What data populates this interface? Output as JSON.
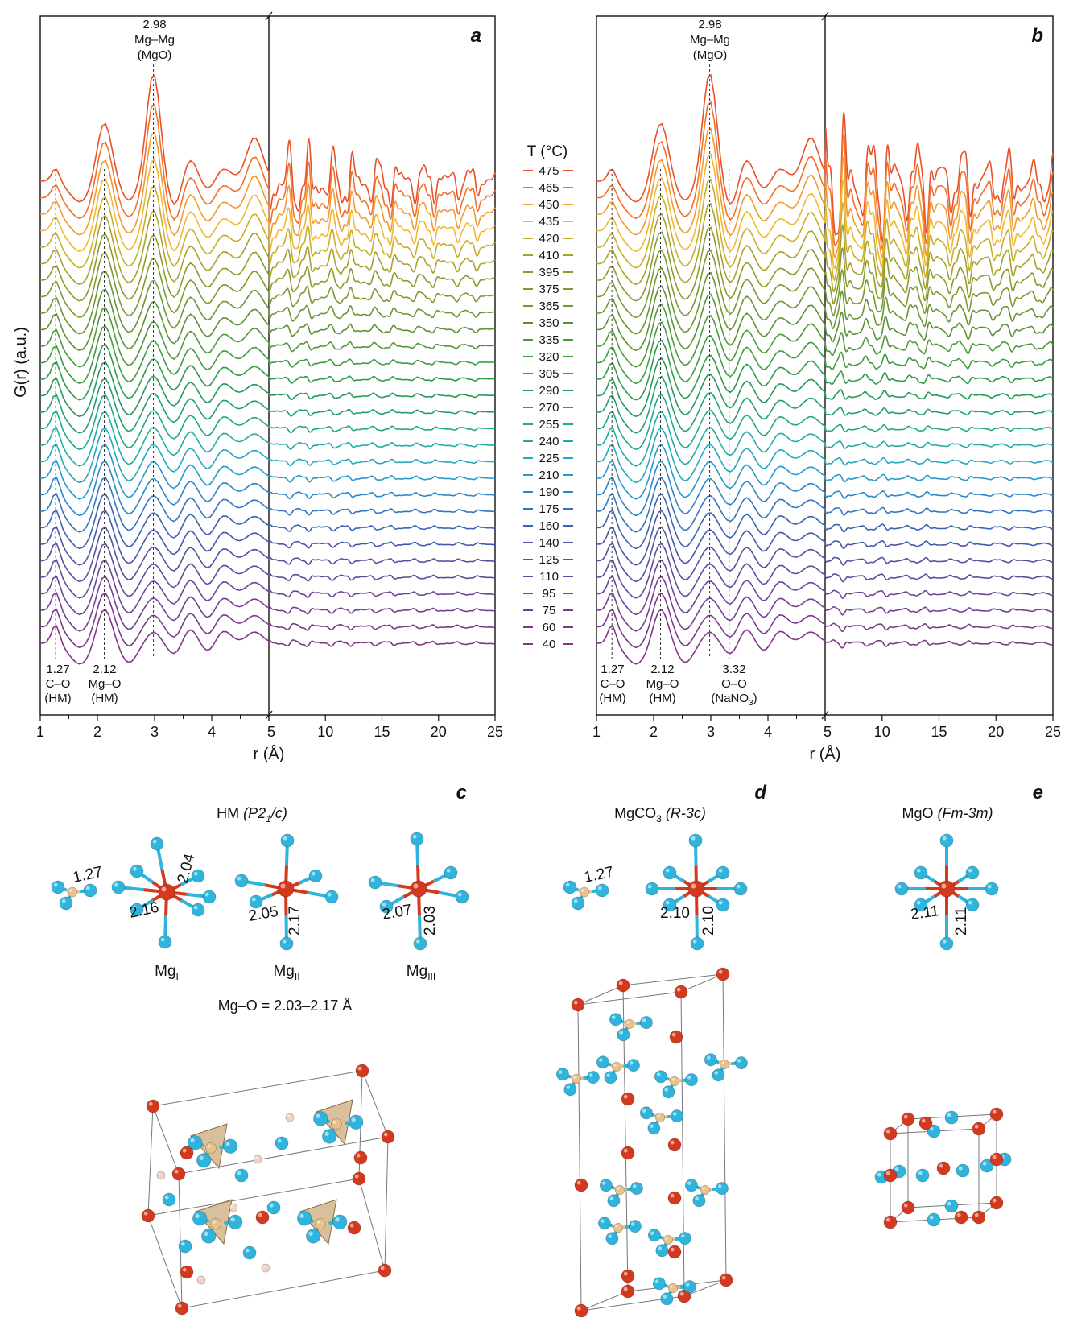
{
  "figure": {
    "y_axis_label": "G(r) (a.u.)",
    "x_axis_label": "r (Å)",
    "legend_title": "T (°C)",
    "temperatures": [
      "475",
      "465",
      "450",
      "435",
      "420",
      "410",
      "395",
      "375",
      "365",
      "350",
      "335",
      "320",
      "305",
      "290",
      "270",
      "255",
      "240",
      "225",
      "210",
      "190",
      "175",
      "160",
      "140",
      "125",
      "110",
      "95",
      "75",
      "60",
      "40"
    ],
    "legend_colors": [
      "#e8502a",
      "#f0702c",
      "#f29a30",
      "#f0b730",
      "#c9ae2a",
      "#a8a22a",
      "#8c9b2e",
      "#7a9a30",
      "#6a9634",
      "#5a9236",
      "#4d9a3a",
      "#3e9c3e",
      "#2f9a48",
      "#24995a",
      "#20a070",
      "#1fa888",
      "#20aca4",
      "#22a8c0",
      "#2598cc",
      "#2a86c8",
      "#3274be",
      "#3a62b4",
      "#4656aa",
      "#5450a2",
      "#604a9c",
      "#6c4498",
      "#753e92",
      "#7c388c",
      "#823488"
    ]
  },
  "panel_a": {
    "label": "a",
    "top_annotation": [
      "2.98",
      "Mg–Mg",
      "(MgO)"
    ],
    "bottom_annotations": [
      {
        "lines": [
          "1.27",
          "C–O",
          "(HM)"
        ]
      },
      {
        "lines": [
          "2.12",
          "Mg–O",
          "(HM)"
        ]
      }
    ],
    "x_ticks_left": [
      "1",
      "2",
      "3",
      "4",
      "5"
    ],
    "x_ticks_right": [
      "5",
      "10",
      "15",
      "20",
      "25"
    ]
  },
  "panel_b": {
    "label": "b",
    "top_annotation": [
      "2.98",
      "Mg–Mg",
      "(MgO)"
    ],
    "bottom_annotations": [
      {
        "lines": [
          "1.27",
          "C–O",
          "(HM)"
        ]
      },
      {
        "lines": [
          "2.12",
          "Mg–O",
          "(HM)"
        ]
      },
      {
        "lines": [
          "3.32",
          "O–O",
          "(NaNO",
          "3",
          ")"
        ]
      }
    ],
    "x_ticks_left": [
      "1",
      "2",
      "3",
      "4",
      "5"
    ],
    "x_ticks_right": [
      "5",
      "10",
      "15",
      "20",
      "25"
    ]
  },
  "panel_c": {
    "label": "c",
    "title_main": "HM",
    "title_group": "(P2",
    "title_sub": "1",
    "title_end": "/c)",
    "bond_co": "1.27",
    "sites": [
      {
        "name": "Mg",
        "sub": "I",
        "bonds": [
          "2.04",
          "2.16"
        ]
      },
      {
        "name": "Mg",
        "sub": "II",
        "bonds": [
          "2.05",
          "2.17"
        ]
      },
      {
        "name": "Mg",
        "sub": "III",
        "bonds": [
          "2.07",
          "2.03"
        ]
      }
    ],
    "range_text": "Mg–O = 2.03–2.17 Å"
  },
  "panel_d": {
    "label": "d",
    "title_main": "MgCO",
    "title_sub": "3",
    "title_group": "(R-3c)",
    "bond_co": "1.27",
    "bonds": [
      "2.10",
      "2.10"
    ]
  },
  "panel_e": {
    "label": "e",
    "title_main": "MgO",
    "title_group": "(Fm-3m)",
    "bonds": [
      "2.11",
      "2.11"
    ]
  },
  "colors": {
    "oxygen": "#2fb5dd",
    "magnesium": "#d4391e",
    "carbon": "#e7c28c",
    "hydrogen": "#f2d2c8",
    "triangle": "#c9a574"
  },
  "chart_data": [
    {
      "type": "line",
      "title": "a",
      "xlabel": "r (Å)",
      "ylabel": "G(r) (a.u.)",
      "xlim": [
        1,
        25
      ],
      "x_break": 5,
      "series_names": [
        "475",
        "465",
        "450",
        "435",
        "420",
        "410",
        "395",
        "375",
        "365",
        "350",
        "335",
        "320",
        "305",
        "290",
        "270",
        "255",
        "240",
        "225",
        "210",
        "190",
        "175",
        "160",
        "140",
        "125",
        "110",
        "95",
        "75",
        "60",
        "40"
      ],
      "peaks": [
        {
          "r": 1.27,
          "label": "C–O (HM)"
        },
        {
          "r": 2.12,
          "label": "Mg–O (HM)"
        },
        {
          "r": 2.98,
          "label": "Mg–Mg (MgO)"
        }
      ]
    },
    {
      "type": "line",
      "title": "b",
      "xlabel": "r (Å)",
      "ylabel": "G(r) (a.u.)",
      "xlim": [
        1,
        25
      ],
      "x_break": 5,
      "series_names": [
        "475",
        "465",
        "450",
        "435",
        "420",
        "410",
        "395",
        "375",
        "365",
        "350",
        "335",
        "320",
        "305",
        "290",
        "270",
        "255",
        "240",
        "225",
        "210",
        "190",
        "175",
        "160",
        "140",
        "125",
        "110",
        "95",
        "75",
        "60",
        "40"
      ],
      "peaks": [
        {
          "r": 1.27,
          "label": "C–O (HM)"
        },
        {
          "r": 2.12,
          "label": "Mg–O (HM)"
        },
        {
          "r": 2.98,
          "label": "Mg–Mg (MgO)"
        },
        {
          "r": 3.32,
          "label": "O–O (NaNO3)"
        }
      ]
    }
  ]
}
